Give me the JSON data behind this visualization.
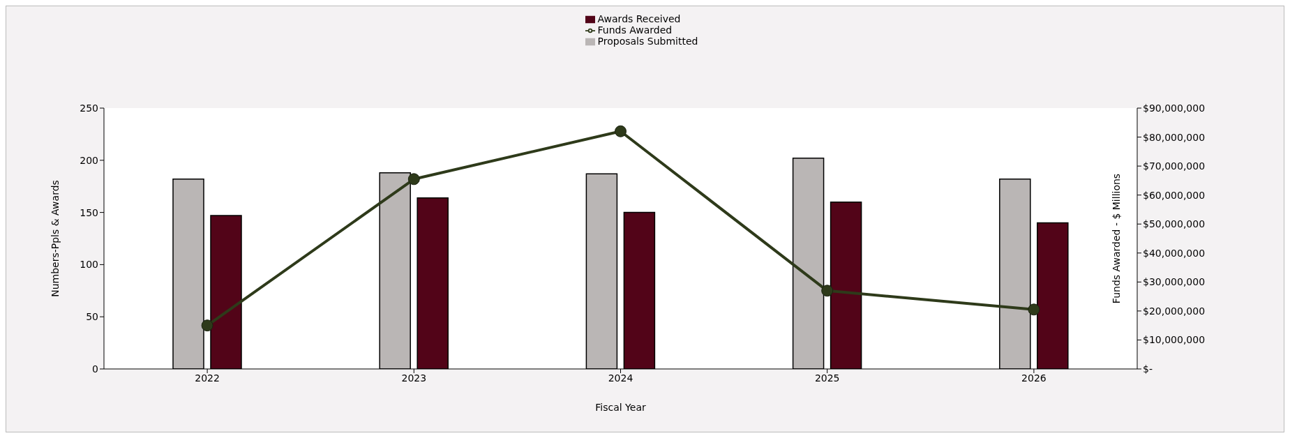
{
  "chart_data": {
    "type": "bar",
    "xlabel": "Fiscal Year",
    "ylabel": "Numbers-Ppls & Awards",
    "y2label": "Funds Awarded  -  $ Millions",
    "categories": [
      "2022",
      "2023",
      "2024",
      "2025",
      "2026"
    ],
    "series": [
      {
        "name": "Proposals Submitted",
        "color": "#bab6b5",
        "values": [
          182,
          188,
          187,
          202,
          182
        ]
      },
      {
        "name": "Awards Received",
        "color": "#520418",
        "values": [
          147,
          164,
          150,
          160,
          140
        ]
      },
      {
        "name": "Funds Awarded",
        "type": "line",
        "axis": "y2",
        "color": "#2e3a1a",
        "marker": "circle",
        "values": [
          15000000,
          65500000,
          82000000,
          27000000,
          20500000
        ]
      }
    ],
    "ylim": [
      0,
      250
    ],
    "yticks": [
      0,
      50,
      100,
      150,
      200,
      250
    ],
    "y2lim": [
      0,
      90000000
    ],
    "y2ticks": [
      {
        "value": 0,
        "label": "$-"
      },
      {
        "value": 10000000,
        "label": "$10,000,000"
      },
      {
        "value": 20000000,
        "label": "$20,000,000"
      },
      {
        "value": 30000000,
        "label": "$30,000,000"
      },
      {
        "value": 40000000,
        "label": "$40,000,000"
      },
      {
        "value": 50000000,
        "label": "$50,000,000"
      },
      {
        "value": 60000000,
        "label": "$60,000,000"
      },
      {
        "value": 70000000,
        "label": "$70,000,000"
      },
      {
        "value": 80000000,
        "label": "$80,000,000"
      },
      {
        "value": 90000000,
        "label": "$90,000,000"
      }
    ],
    "legend": "top",
    "grid": false
  }
}
